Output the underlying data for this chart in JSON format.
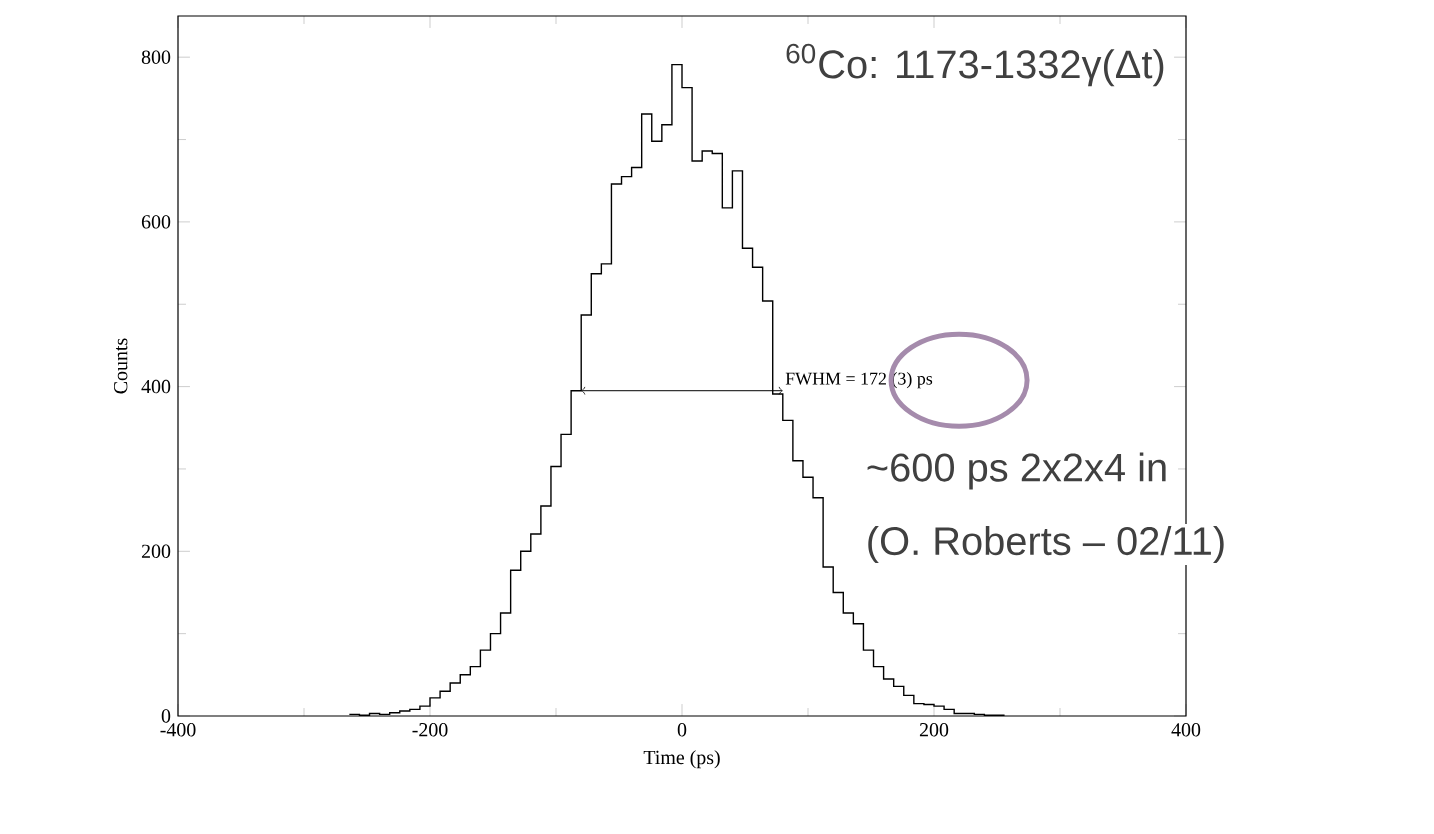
{
  "chart_data": {
    "type": "histogram",
    "title": "$^{60}$Co: 1173-1332γ(Δt)",
    "xlabel": "Time (ps)",
    "ylabel": "Counts",
    "bins": [
      -264,
      -256,
      -248,
      -240,
      -232,
      -224,
      -216,
      -208,
      -200,
      -192,
      -184,
      -176,
      -168,
      -160,
      -152,
      -144,
      -136,
      -128,
      -120,
      -112,
      -104,
      -96,
      -88,
      -80,
      -72,
      -64,
      -56,
      -48,
      -40,
      -32,
      -24,
      -16,
      -8,
      0,
      8,
      16,
      24,
      32,
      40,
      48,
      56,
      64,
      72,
      80,
      88,
      96,
      104,
      112,
      120,
      128,
      136,
      144,
      152,
      160,
      168,
      176,
      184,
      192,
      200,
      208,
      216,
      224,
      232,
      240,
      248,
      256
    ],
    "values": [
      2,
      1,
      3,
      2,
      4,
      6,
      8,
      12,
      22,
      30,
      40,
      50,
      60,
      80,
      100,
      125,
      177,
      200,
      221,
      255,
      303,
      342,
      395,
      487,
      537,
      549,
      646,
      655,
      666,
      731,
      698,
      718,
      791,
      763,
      674,
      686,
      683,
      617,
      662,
      568,
      545,
      504,
      391,
      359,
      310,
      290,
      265,
      181,
      150,
      125,
      112,
      80,
      60,
      45,
      36,
      25,
      15,
      14,
      12,
      8,
      3,
      3,
      2,
      1,
      1
    ],
    "color": "#000000",
    "xlim": [
      -400,
      400
    ],
    "ylim": [
      0,
      850
    ],
    "xticks": [
      -400,
      -200,
      0,
      200,
      400
    ],
    "yticks": [
      0,
      200,
      400,
      600,
      800
    ],
    "annotations": [
      {
        "text": "FWHM = 172 (3) ps",
        "x": 80,
        "y": 395
      },
      "~600 ps 2x2x4 in",
      "(O. Roberts – 02/11)"
    ]
  }
}
